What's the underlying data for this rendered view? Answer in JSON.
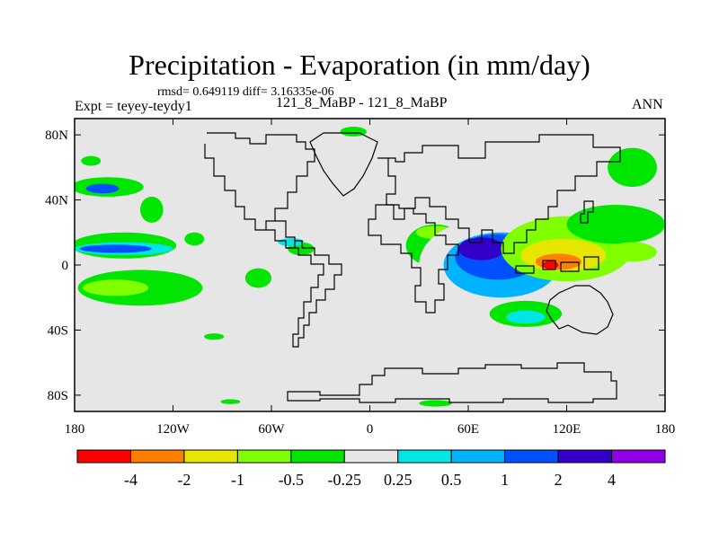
{
  "header": {
    "title": "Precipitation - Evaporation (in mm/day)",
    "stats": "rmsd= 0.649119 diff= 3.16335e-06",
    "experiment": "Expt = teyey-teydy1",
    "cases": "121_8_MaBP - 121_8_MaBP",
    "season": "ANN"
  },
  "chart_data": {
    "type": "heatmap",
    "title": "Precipitation - Evaporation (in mm/day)",
    "xlabel": "",
    "ylabel": "",
    "xlim": [
      -180,
      180
    ],
    "ylim": [
      -90,
      90
    ],
    "x_ticks": [
      {
        "value": -180,
        "label": "180"
      },
      {
        "value": -120,
        "label": "120W"
      },
      {
        "value": -60,
        "label": "60W"
      },
      {
        "value": 0,
        "label": "0"
      },
      {
        "value": 60,
        "label": "60E"
      },
      {
        "value": 120,
        "label": "120E"
      },
      {
        "value": 180,
        "label": "180"
      }
    ],
    "y_ticks": [
      {
        "value": 80,
        "label": "80N"
      },
      {
        "value": 40,
        "label": "40N"
      },
      {
        "value": 0,
        "label": "0"
      },
      {
        "value": -40,
        "label": "40S"
      },
      {
        "value": -80,
        "label": "80S"
      }
    ],
    "colorbar": {
      "levels": [
        "-4",
        "-2",
        "-1",
        "-0.5",
        "-0.25",
        "0.25",
        "0.5",
        "1",
        "2",
        "4"
      ],
      "colors": [
        "#ff0000",
        "#ff8000",
        "#e6e600",
        "#80ff00",
        "#00e600",
        "#e6e6e6",
        "#00e6e6",
        "#00b3ff",
        "#0050ff",
        "#3200c8",
        "#9000e6"
      ]
    },
    "regions": [
      {
        "bin": 4,
        "lon": -160,
        "lat": 48,
        "rx": 22,
        "ry": 6
      },
      {
        "bin": 8,
        "lon": -163,
        "lat": 47,
        "rx": 10,
        "ry": 3
      },
      {
        "bin": 4,
        "lon": -170,
        "lat": 64,
        "rx": 6,
        "ry": 3
      },
      {
        "bin": 4,
        "lon": -133,
        "lat": 34,
        "rx": 7,
        "ry": 8
      },
      {
        "bin": 4,
        "lon": -150,
        "lat": 12,
        "rx": 32,
        "ry": 8
      },
      {
        "bin": 6,
        "lon": -150,
        "lat": 10,
        "rx": 30,
        "ry": 4
      },
      {
        "bin": 8,
        "lon": -155,
        "lat": 10,
        "rx": 22,
        "ry": 2.5
      },
      {
        "bin": 4,
        "lon": -140,
        "lat": -14,
        "rx": 38,
        "ry": 11
      },
      {
        "bin": 3,
        "lon": -155,
        "lat": -14,
        "rx": 20,
        "ry": 5
      },
      {
        "bin": 4,
        "lon": -107,
        "lat": 16,
        "rx": 6,
        "ry": 4
      },
      {
        "bin": 4,
        "lon": -68,
        "lat": -8,
        "rx": 8,
        "ry": 6
      },
      {
        "bin": 4,
        "lon": -42,
        "lat": 10,
        "rx": 8,
        "ry": 4
      },
      {
        "bin": 6,
        "lon": -48,
        "lat": 14,
        "rx": 8,
        "ry": 2.5
      },
      {
        "bin": 4,
        "lon": -95,
        "lat": -44,
        "rx": 6,
        "ry": 2
      },
      {
        "bin": 4,
        "lon": -10,
        "lat": 82,
        "rx": 8,
        "ry": 3
      },
      {
        "bin": 4,
        "lon": 40,
        "lat": 12,
        "rx": 18,
        "ry": 13
      },
      {
        "bin": 3,
        "lon": 40,
        "lat": 20,
        "rx": 12,
        "ry": 4
      },
      {
        "bin": 5,
        "lon": 70,
        "lat": 0,
        "rx": 40,
        "ry": 28
      },
      {
        "bin": 7,
        "lon": 80,
        "lat": 0,
        "rx": 35,
        "ry": 20
      },
      {
        "bin": 8,
        "lon": 78,
        "lat": 5,
        "rx": 26,
        "ry": 14
      },
      {
        "bin": 9,
        "lon": 68,
        "lat": 10,
        "rx": 14,
        "ry": 7
      },
      {
        "bin": 3,
        "lon": 120,
        "lat": 10,
        "rx": 40,
        "ry": 20
      },
      {
        "bin": 2,
        "lon": 118,
        "lat": 6,
        "rx": 26,
        "ry": 10
      },
      {
        "bin": 1,
        "lon": 115,
        "lat": 2,
        "rx": 14,
        "ry": 5
      },
      {
        "bin": 0,
        "lon": 110,
        "lat": 0,
        "rx": 5,
        "ry": 2.5
      },
      {
        "bin": 4,
        "lon": 150,
        "lat": 25,
        "rx": 30,
        "ry": 12
      },
      {
        "bin": 3,
        "lon": 160,
        "lat": 8,
        "rx": 15,
        "ry": 6
      },
      {
        "bin": 4,
        "lon": 160,
        "lat": 60,
        "rx": 15,
        "ry": 12
      },
      {
        "bin": 4,
        "lon": 95,
        "lat": -30,
        "rx": 22,
        "ry": 8
      },
      {
        "bin": 6,
        "lon": 95,
        "lat": -32,
        "rx": 12,
        "ry": 4
      },
      {
        "bin": 5,
        "lon": 140,
        "lat": -30,
        "rx": 18,
        "ry": 12
      },
      {
        "bin": 4,
        "lon": 40,
        "lat": -85,
        "rx": 10,
        "ry": 2
      },
      {
        "bin": 4,
        "lon": -85,
        "lat": -84,
        "rx": 6,
        "ry": 1.5
      }
    ]
  }
}
